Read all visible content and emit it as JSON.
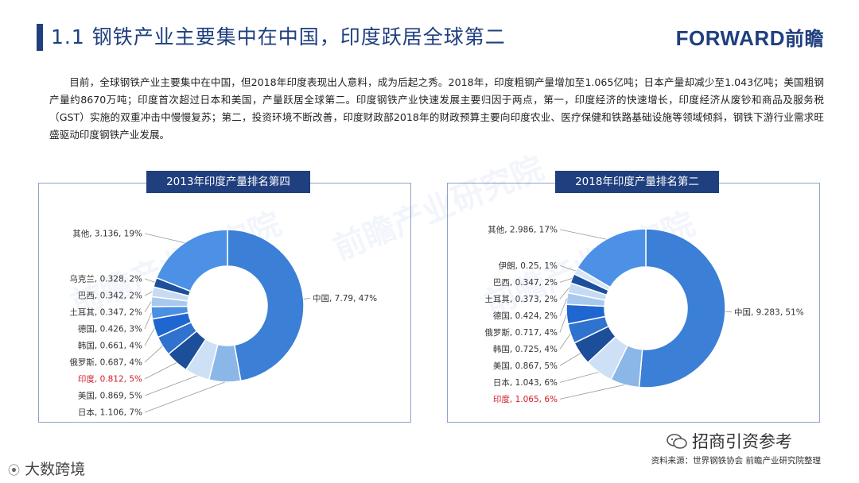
{
  "header": {
    "title": "1.1 钢铁产业主要集中在中国，印度跃居全球第二",
    "logo_latin": "FORWARD",
    "logo_cn": "前瞻"
  },
  "body_text": "目前，全球钢铁产业主要集中在中国，但2018年印度表现出人意料，成为后起之秀。2018年，印度粗钢产量增加至1.065亿吨；日本产量却减少至1.043亿吨；美国粗钢产量约8670万吨；印度首次超过日本和美国，产量跃居全球第二。印度钢铁产业快速发展主要归因于两点，第一，印度经济的快速增长，印度经济从废钞和商品及服务税（GST）实施的双重冲击中慢慢复苏；第二，投资环境不断改善，印度财政部2018年的财政预算主要向印度农业、医疗保健和铁路基础设施等领域倾斜，钢铁下游行业需求旺盛驱动印度钢铁产业发展。",
  "colors": {
    "primary": "#1f3f7f",
    "highlight_text": "#d0202a"
  },
  "chart_data": [
    {
      "type": "pie",
      "donut": true,
      "title": "2013年印度产量排名第四",
      "unit": "亿吨",
      "slices": [
        {
          "name": "中国",
          "value": 7.79,
          "percent": 47,
          "label": "中国, 7.79, 47%",
          "color": "#3b7fd6"
        },
        {
          "name": "日本",
          "value": 1.106,
          "percent": 7,
          "label": "日本, 1.106, 7%",
          "color": "#8ab7e8"
        },
        {
          "name": "美国",
          "value": 0.869,
          "percent": 5,
          "label": "美国, 0.869, 5%",
          "color": "#cde0f5"
        },
        {
          "name": "印度",
          "value": 0.812,
          "percent": 5,
          "label": "印度, 0.812, 5%",
          "color": "#1c4e9a",
          "highlight": true
        },
        {
          "name": "俄罗斯",
          "value": 0.687,
          "percent": 4,
          "label": "俄罗斯, 0.687, 4%",
          "color": "#2f73cf"
        },
        {
          "name": "韩国",
          "value": 0.661,
          "percent": 4,
          "label": "韩国, 0.661, 4%",
          "color": "#1f66d0"
        },
        {
          "name": "德国",
          "value": 0.426,
          "percent": 3,
          "label": "德国, 0.426, 3%",
          "color": "#4a90e2"
        },
        {
          "name": "土耳其",
          "value": 0.347,
          "percent": 2,
          "label": "土耳其, 0.347, 2%",
          "color": "#a9c8ee"
        },
        {
          "name": "巴西",
          "value": 0.342,
          "percent": 2,
          "label": "巴西, 0.342, 2%",
          "color": "#c6dbf3"
        },
        {
          "name": "乌克兰",
          "value": 0.328,
          "percent": 2,
          "label": "乌克兰, 0.328, 2%",
          "color": "#1d4f9c"
        },
        {
          "name": "其他",
          "value": 3.136,
          "percent": 19,
          "label": "其他, 3.136, 19%",
          "color": "#4d91e6"
        }
      ]
    },
    {
      "type": "pie",
      "donut": true,
      "title": "2018年印度产量排名第二",
      "unit": "亿吨",
      "slices": [
        {
          "name": "中国",
          "value": 9.283,
          "percent": 51,
          "label": "中国, 9.283, 51%",
          "color": "#3b7fd6"
        },
        {
          "name": "印度",
          "value": 1.065,
          "percent": 6,
          "label": "印度, 1.065, 6%",
          "color": "#8ab7e8",
          "highlight": true
        },
        {
          "name": "日本",
          "value": 1.043,
          "percent": 6,
          "label": "日本, 1.043, 6%",
          "color": "#cde0f5"
        },
        {
          "name": "美国",
          "value": 0.867,
          "percent": 5,
          "label": "美国, 0.867, 5%",
          "color": "#1c4e9a"
        },
        {
          "name": "韩国",
          "value": 0.725,
          "percent": 4,
          "label": "韩国, 0.725, 4%",
          "color": "#2f73cf"
        },
        {
          "name": "俄罗斯",
          "value": 0.717,
          "percent": 4,
          "label": "俄罗斯, 0.717, 4%",
          "color": "#1f66d0"
        },
        {
          "name": "德国",
          "value": 0.424,
          "percent": 2,
          "label": "德国, 0.424, 2%",
          "color": "#a9c8ee"
        },
        {
          "name": "土耳其",
          "value": 0.373,
          "percent": 2,
          "label": "土耳其, 0.373, 2%",
          "color": "#c6dbf3"
        },
        {
          "name": "巴西",
          "value": 0.347,
          "percent": 2,
          "label": "巴西, 0.347, 2%",
          "color": "#1d4f9c"
        },
        {
          "name": "伊朗",
          "value": 0.25,
          "percent": 1,
          "label": "伊朗, 0.25, 1%",
          "color": "#d6e5f7"
        },
        {
          "name": "其他",
          "value": 2.986,
          "percent": 17,
          "label": "其他, 2.986, 17%",
          "color": "#4d91e6"
        }
      ]
    }
  ],
  "footer": {
    "source": "资料来源：世界钢铁协会 前瞻产业研究院整理",
    "wechat_name": "招商引资参考",
    "brand": "大数跨境"
  }
}
